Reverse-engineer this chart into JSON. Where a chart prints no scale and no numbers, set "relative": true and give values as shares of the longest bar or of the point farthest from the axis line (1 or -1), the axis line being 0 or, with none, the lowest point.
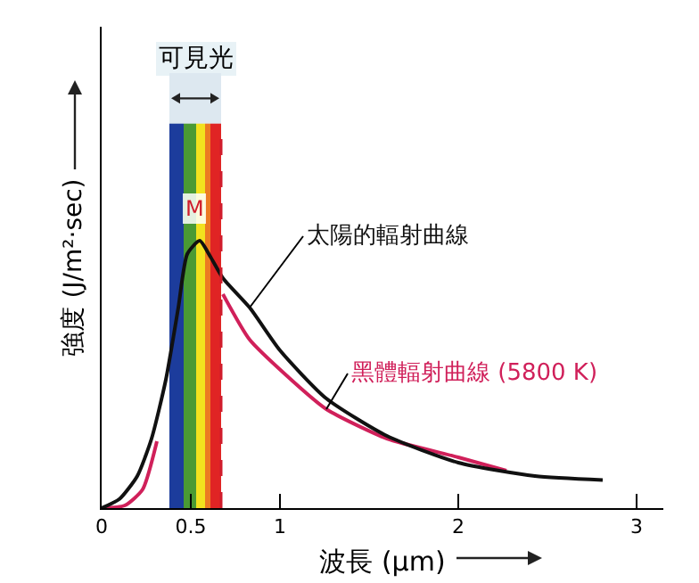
{
  "chart_data": {
    "type": "line",
    "relative": true,
    "xlabel": "波長 (μm)",
    "ylabel": "強度 (J/m²·sec)",
    "xlim": [
      0,
      3.15
    ],
    "xticks": [
      0,
      0.5,
      1,
      2,
      3
    ],
    "legend": false,
    "grid": false,
    "marker": "none",
    "line_style": "solid",
    "annotations": [
      {
        "text": "M",
        "x": 0.52,
        "y": 1.12
      },
      "可見光"
    ],
    "bands": [
      {
        "axis": "x",
        "from": 0.38,
        "to": 0.46,
        "color": "#1c3c9c"
      },
      {
        "axis": "x",
        "from": 0.46,
        "to": 0.53,
        "color": "#4a9a34"
      },
      {
        "axis": "x",
        "from": 0.53,
        "to": 0.58,
        "color": "#f2e21e"
      },
      {
        "axis": "x",
        "from": 0.58,
        "to": 0.61,
        "color": "#ec7a22"
      },
      {
        "axis": "x",
        "from": 0.61,
        "to": 0.67,
        "color": "#e02424"
      }
    ],
    "ref_lines": [
      {
        "axis": "x",
        "value": 0.67,
        "color": "#d01c2c",
        "line_style": "dashed"
      }
    ],
    "series": [
      {
        "name": "黑體輻射曲線 (5800 K)",
        "color": "#d0205a",
        "x": [
          0,
          0.13,
          0.23,
          0.31,
          0.38,
          0.68,
          0.83,
          1.03,
          1.26,
          1.6,
          2.0,
          2.27
        ],
        "values": [
          0,
          0.01,
          0.07,
          0.25,
          null,
          0.8,
          0.63,
          0.5,
          0.37,
          0.26,
          0.19,
          0.14
        ]
      },
      {
        "name": "太陽的輻射曲線",
        "color": "#111111",
        "x": [
          0,
          0.1,
          0.2,
          0.28,
          0.36,
          0.43,
          0.48,
          0.55,
          0.61,
          0.68,
          0.83,
          1.0,
          1.26,
          1.6,
          2.0,
          2.43,
          2.81
        ],
        "values": [
          0,
          0.034,
          0.12,
          0.26,
          0.48,
          0.75,
          0.95,
          1.0,
          0.94,
          0.86,
          0.75,
          0.59,
          0.41,
          0.27,
          0.17,
          0.12,
          0.105
        ]
      }
    ]
  }
}
